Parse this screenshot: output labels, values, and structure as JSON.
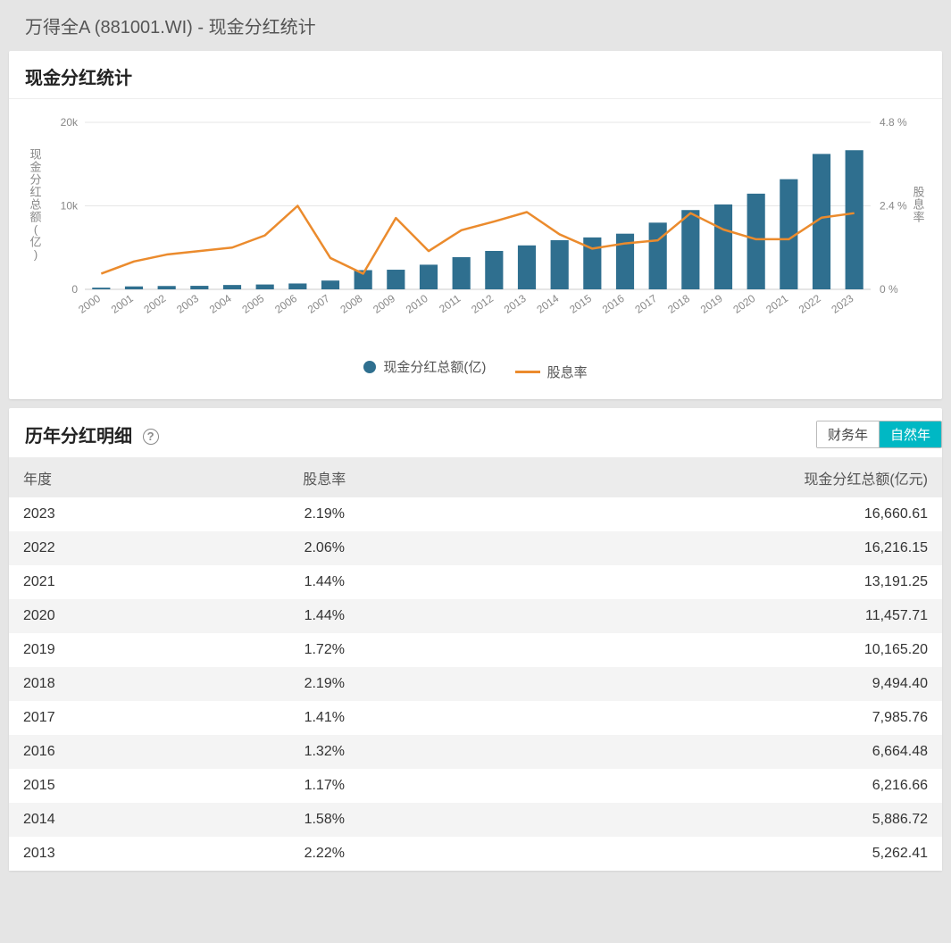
{
  "header": {
    "title": "万得全A (881001.WI) - 现金分红统计"
  },
  "chart_panel": {
    "title": "现金分红统计",
    "chart": {
      "type": "bar+line",
      "years": [
        "2000",
        "2001",
        "2002",
        "2003",
        "2004",
        "2005",
        "2006",
        "2007",
        "2008",
        "2009",
        "2010",
        "2011",
        "2012",
        "2013",
        "2014",
        "2015",
        "2016",
        "2017",
        "2018",
        "2019",
        "2020",
        "2021",
        "2022",
        "2023"
      ],
      "bar_series": {
        "label": "现金分红总额(亿)",
        "color": "#2f6f8f",
        "values": [
          200,
          350,
          400,
          420,
          520,
          580,
          700,
          1050,
          2300,
          2350,
          2950,
          3850,
          4600,
          5262,
          5887,
          6217,
          6664,
          7986,
          9494,
          10165,
          11458,
          13191,
          16216,
          16660
        ]
      },
      "line_series": {
        "label": "股息率",
        "color": "#eb8b2d",
        "values_pct": [
          0.45,
          0.8,
          1.0,
          1.1,
          1.2,
          1.55,
          2.4,
          0.9,
          0.45,
          2.05,
          1.1,
          1.7,
          1.95,
          2.22,
          1.58,
          1.17,
          1.32,
          1.41,
          2.19,
          1.72,
          1.44,
          1.44,
          2.06,
          2.19
        ]
      },
      "y_left": {
        "label": "现金分红总额(亿)",
        "min": 0,
        "max": 20000,
        "ticks": [
          0,
          10000,
          20000
        ],
        "tick_labels": [
          "0",
          "10k",
          "20k"
        ]
      },
      "y_right": {
        "label": "股息率",
        "min": 0,
        "max": 4.8,
        "ticks": [
          0,
          2.4,
          4.8
        ],
        "tick_labels": [
          "0 %",
          "2.4 %",
          "4.8 %"
        ]
      },
      "background_color": "#ffffff",
      "grid_color": "#e6e6e6",
      "bar_width_ratio": 0.55,
      "line_width": 2.5
    },
    "legend": {
      "bar_label": "现金分红总额(亿)",
      "line_label": "股息率"
    }
  },
  "table_panel": {
    "title": "历年分红明细",
    "help_icon": "?",
    "toggle": {
      "options": [
        "财务年",
        "自然年"
      ],
      "active_index": 1
    },
    "columns": [
      "年度",
      "股息率",
      "现金分红总额(亿元)"
    ],
    "rows": [
      {
        "year": "2023",
        "rate": "2.19%",
        "amount": "16,660.61"
      },
      {
        "year": "2022",
        "rate": "2.06%",
        "amount": "16,216.15"
      },
      {
        "year": "2021",
        "rate": "1.44%",
        "amount": "13,191.25"
      },
      {
        "year": "2020",
        "rate": "1.44%",
        "amount": "11,457.71"
      },
      {
        "year": "2019",
        "rate": "1.72%",
        "amount": "10,165.20"
      },
      {
        "year": "2018",
        "rate": "2.19%",
        "amount": "9,494.40"
      },
      {
        "year": "2017",
        "rate": "1.41%",
        "amount": "7,985.76"
      },
      {
        "year": "2016",
        "rate": "1.32%",
        "amount": "6,664.48"
      },
      {
        "year": "2015",
        "rate": "1.17%",
        "amount": "6,216.66"
      },
      {
        "year": "2014",
        "rate": "1.58%",
        "amount": "5,886.72"
      },
      {
        "year": "2013",
        "rate": "2.22%",
        "amount": "5,262.41"
      }
    ]
  }
}
